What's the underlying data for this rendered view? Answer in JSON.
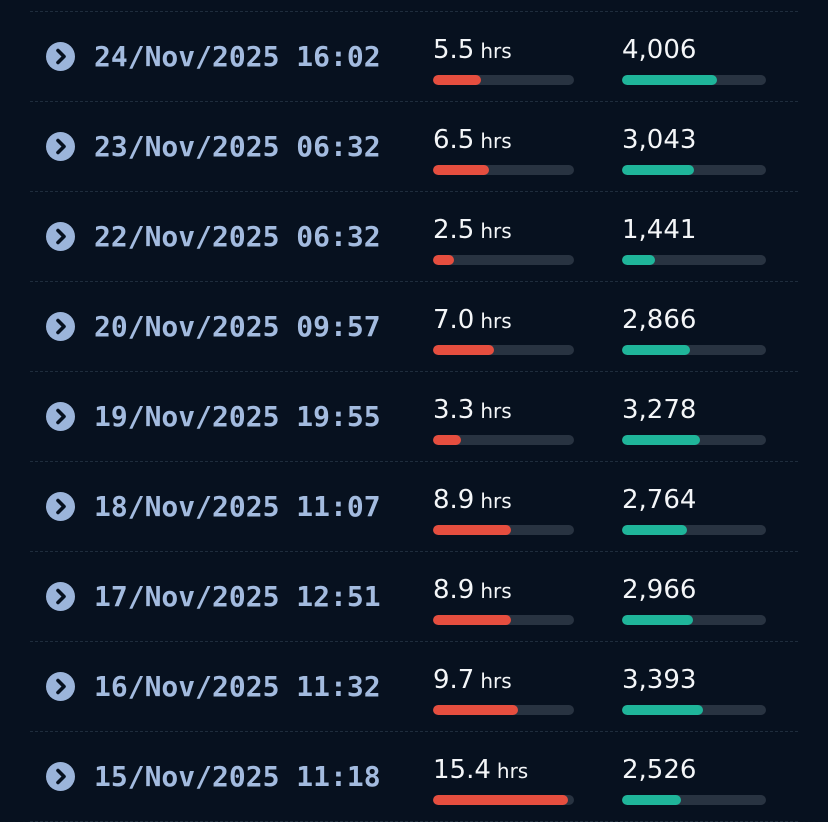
{
  "colors": {
    "background": "#07111f",
    "date_text": "#a3bbdf",
    "chevron_bg": "#9bb4da",
    "sleep_bar": "#e54e3f",
    "steps_bar": "#1fb59a",
    "bar_track": "#283341"
  },
  "sleep_unit": "hrs",
  "entries": [
    {
      "date": "24/Nov/2025 16:02",
      "sleep": "5.5",
      "sleep_fraction": 0.34,
      "steps": "4,006",
      "steps_fraction": 0.66
    },
    {
      "date": "23/Nov/2025 06:32",
      "sleep": "6.5",
      "sleep_fraction": 0.4,
      "steps": "3,043",
      "steps_fraction": 0.5
    },
    {
      "date": "22/Nov/2025 06:32",
      "sleep": "2.5",
      "sleep_fraction": 0.15,
      "steps": "1,441",
      "steps_fraction": 0.23
    },
    {
      "date": "20/Nov/2025 09:57",
      "sleep": "7.0",
      "sleep_fraction": 0.43,
      "steps": "2,866",
      "steps_fraction": 0.47
    },
    {
      "date": "19/Nov/2025 19:55",
      "sleep": "3.3",
      "sleep_fraction": 0.2,
      "steps": "3,278",
      "steps_fraction": 0.54
    },
    {
      "date": "18/Nov/2025 11:07",
      "sleep": "8.9",
      "sleep_fraction": 0.55,
      "steps": "2,764",
      "steps_fraction": 0.45
    },
    {
      "date": "17/Nov/2025 12:51",
      "sleep": "8.9",
      "sleep_fraction": 0.55,
      "steps": "2,966",
      "steps_fraction": 0.49
    },
    {
      "date": "16/Nov/2025 11:32",
      "sleep": "9.7",
      "sleep_fraction": 0.6,
      "steps": "3,393",
      "steps_fraction": 0.56
    },
    {
      "date": "15/Nov/2025 11:18",
      "sleep": "15.4",
      "sleep_fraction": 0.96,
      "steps": "2,526",
      "steps_fraction": 0.41
    }
  ]
}
